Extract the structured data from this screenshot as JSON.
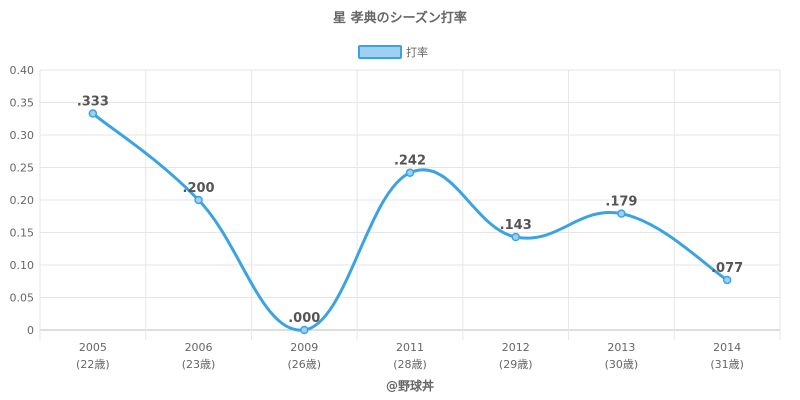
{
  "chart_data": {
    "type": "line",
    "title": "星 孝典のシーズン打率",
    "legend": {
      "position": "top",
      "entries": [
        "打率"
      ]
    },
    "x": [
      "2005",
      "2006",
      "2009",
      "2011",
      "2012",
      "2013",
      "2014"
    ],
    "x_sublabels": [
      "(22歳)",
      "(23歳)",
      "(26歳)",
      "(28歳)",
      "(29歳)",
      "(30歳)",
      "(31歳)"
    ],
    "series": [
      {
        "name": "打率",
        "values": [
          0.333,
          0.2,
          0.0,
          0.242,
          0.143,
          0.179,
          0.077
        ],
        "labels": [
          ".333",
          ".200",
          ".000",
          ".242",
          ".143",
          ".179",
          ".077"
        ],
        "color": "#3ba3e3",
        "fill": "#9fd0f1"
      }
    ],
    "ylim": [
      0,
      0.4
    ],
    "yticks": [
      "0",
      "0.05",
      "0.10",
      "0.15",
      "0.20",
      "0.25",
      "0.30",
      "0.35",
      "0.40"
    ],
    "grid": true,
    "credit": "@野球丼"
  }
}
